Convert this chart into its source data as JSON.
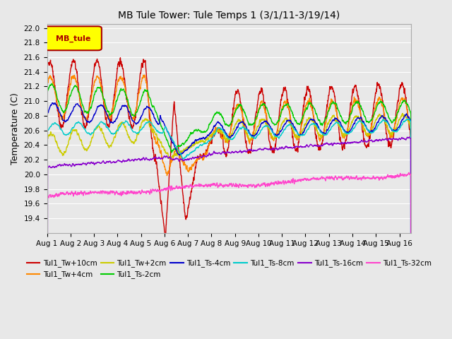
{
  "title": "MB Tule Tower: Tule Temps 1 (3/1/11-3/19/14)",
  "ylabel": "Temperature (C)",
  "xlim_days": [
    0,
    15.5
  ],
  "ylim": [
    19.2,
    22.05
  ],
  "yticks": [
    19.4,
    19.6,
    19.8,
    20.0,
    20.2,
    20.4,
    20.6,
    20.8,
    21.0,
    21.2,
    21.4,
    21.6,
    21.8,
    22.0
  ],
  "xtick_labels": [
    "Aug 1",
    "Aug 2",
    "Aug 3",
    "Aug 4",
    "Aug 5",
    "Aug 6",
    "Aug 7",
    "Aug 8",
    "Aug 9",
    "Aug 10",
    "Aug 11",
    "Aug 12",
    "Aug 13",
    "Aug 14",
    "Aug 15",
    "Aug 16"
  ],
  "background_color": "#e8e8e8",
  "grid_color": "#ffffff",
  "legend_label": "MB_tule",
  "legend_box_color": "#ffff00",
  "legend_box_edge": "#aa0000",
  "series": [
    {
      "name": "Tul1_Tw+10cm",
      "color": "#cc0000",
      "lw": 1.0
    },
    {
      "name": "Tul1_Tw+4cm",
      "color": "#ff8800",
      "lw": 1.0
    },
    {
      "name": "Tul1_Tw+2cm",
      "color": "#cccc00",
      "lw": 1.0
    },
    {
      "name": "Tul1_Ts-2cm",
      "color": "#00cc00",
      "lw": 1.0
    },
    {
      "name": "Tul1_Ts-4cm",
      "color": "#0000cc",
      "lw": 1.0
    },
    {
      "name": "Tul1_Ts-8cm",
      "color": "#00cccc",
      "lw": 1.0
    },
    {
      "name": "Tul1_Ts-16cm",
      "color": "#8800cc",
      "lw": 1.0
    },
    {
      "name": "Tul1_Ts-32cm",
      "color": "#ff44cc",
      "lw": 1.0
    }
  ]
}
